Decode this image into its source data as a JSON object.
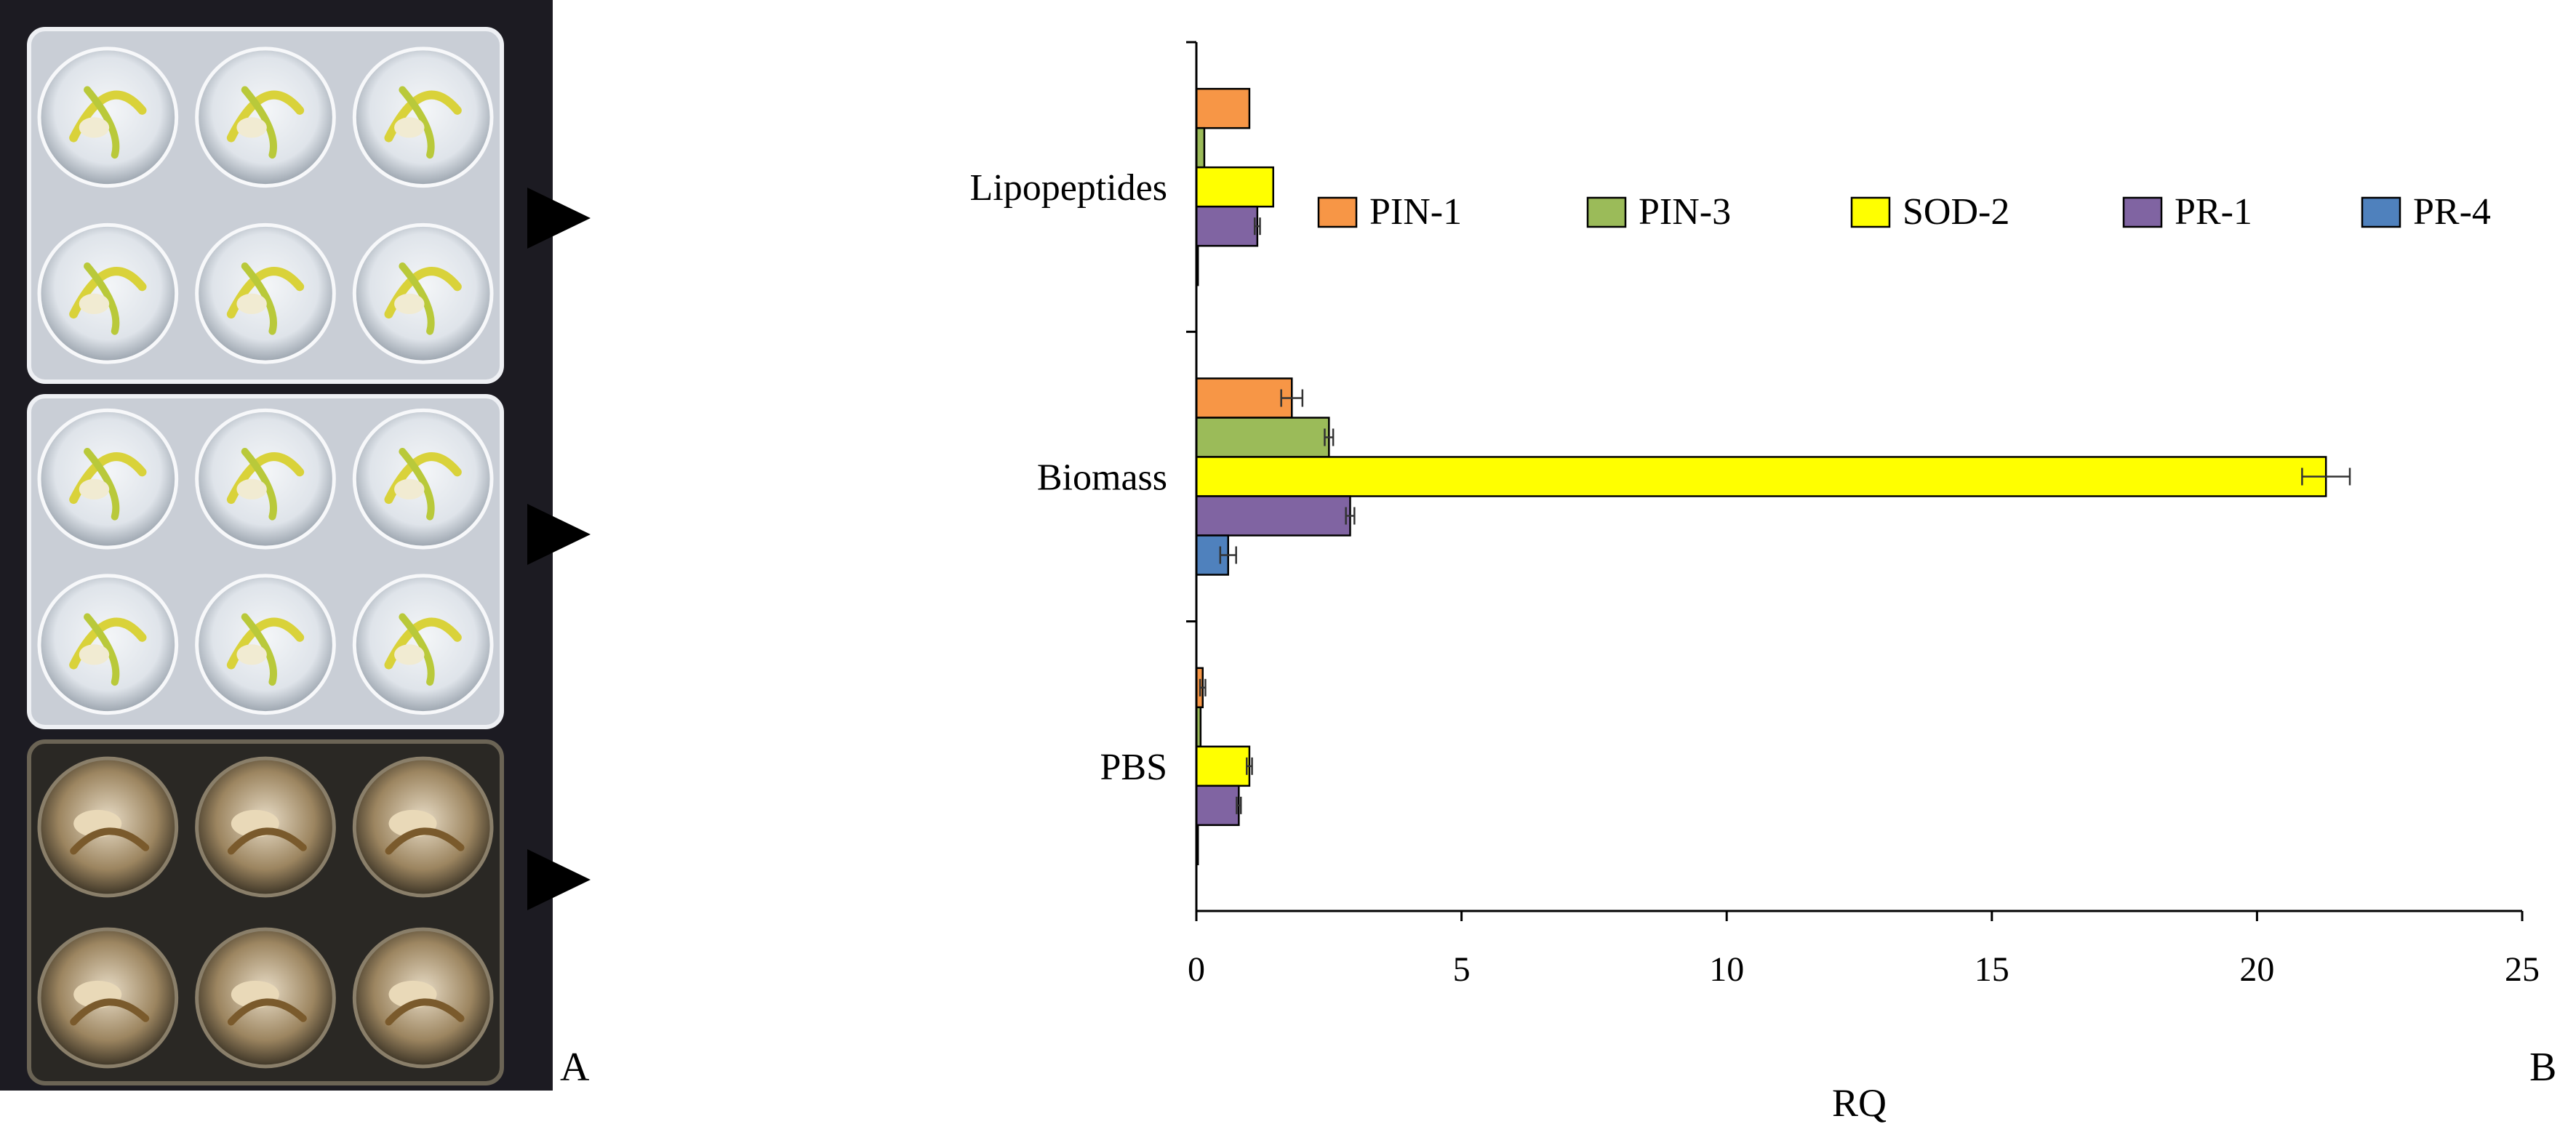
{
  "figure": {
    "panel_a_label": "A",
    "panel_b_label": "B"
  },
  "photo": {
    "description_icon": "seedling-plate-photo-icon",
    "plates": [
      {
        "state": "healthy",
        "wells": 6
      },
      {
        "state": "healthy",
        "wells": 6
      },
      {
        "state": "diseased",
        "wells": 6
      }
    ]
  },
  "chart_data": {
    "type": "bar",
    "orientation": "horizontal",
    "categories": [
      "Lipopeptides",
      "Biomass",
      "PBS"
    ],
    "xlabel": "RQ",
    "ylabel": "",
    "xlim": [
      0,
      25
    ],
    "xticks": [
      0,
      5,
      10,
      15,
      20,
      25
    ],
    "legend_position": "top-right",
    "series": [
      {
        "name": "PIN-1",
        "color": "#F79646",
        "values": [
          1.0,
          1.8,
          0.12
        ],
        "errors": [
          0.0,
          0.2,
          0.05
        ]
      },
      {
        "name": "PIN-3",
        "color": "#9BBB59",
        "values": [
          0.15,
          2.5,
          0.08
        ],
        "errors": [
          0.0,
          0.08,
          0.0
        ]
      },
      {
        "name": "SOD-2",
        "color": "#FFFF00",
        "values": [
          1.45,
          21.3,
          1.0
        ],
        "errors": [
          0.0,
          0.45,
          0.05
        ]
      },
      {
        "name": "PR-1",
        "color": "#8064A2",
        "values": [
          1.15,
          2.9,
          0.8
        ],
        "errors": [
          0.05,
          0.08,
          0.04
        ]
      },
      {
        "name": "PR-4",
        "color": "#4F81BD",
        "values": [
          0.03,
          0.6,
          0.03
        ],
        "errors": [
          0.0,
          0.15,
          0.0
        ]
      }
    ]
  }
}
